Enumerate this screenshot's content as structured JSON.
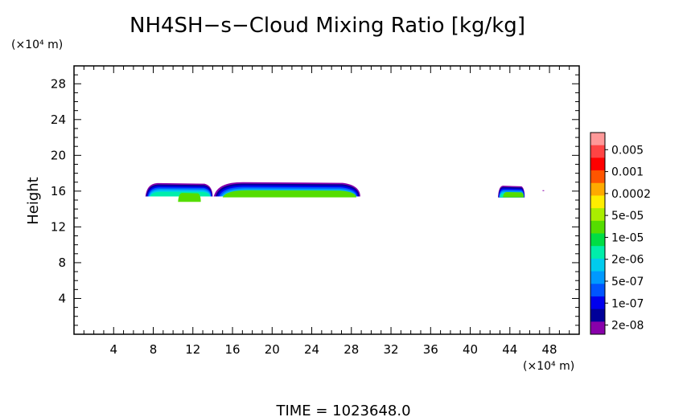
{
  "chart_data": {
    "type": "heatmap",
    "title": "NH4SH−s−Cloud Mixing Ratio [kg/kg]",
    "ylabel": "Height",
    "yunit": "(×10⁴ m)",
    "xunit": "(×10⁴ m)",
    "x_ticks": [
      4,
      8,
      12,
      16,
      20,
      24,
      28,
      32,
      36,
      40,
      44,
      48
    ],
    "y_ticks": [
      4,
      8,
      12,
      16,
      20,
      24,
      28
    ],
    "xlim": [
      0,
      51
    ],
    "ylim": [
      0,
      30
    ],
    "footer": "TIME  =  1023648.0",
    "colorbar": {
      "labels": [
        "0.005",
        "0.001",
        "0.0002",
        "5e-05",
        "1e-05",
        "2e-06",
        "5e-07",
        "1e-07",
        "2e-08"
      ],
      "colors": [
        "#ff9999",
        "#ff4444",
        "#ff0000",
        "#ff5500",
        "#ffaa00",
        "#ffee00",
        "#aaee00",
        "#55dd00",
        "#00dd44",
        "#00eeaa",
        "#00ccee",
        "#0099ff",
        "#0055ff",
        "#0000ee",
        "#000099",
        "#8800aa"
      ]
    },
    "cloud_layers": [
      {
        "level": "2e-08",
        "color": "#8800aa",
        "top": 16.9,
        "bottom": 15.5
      },
      {
        "level": "1e-07",
        "color": "#000099",
        "top": 16.7,
        "bottom": 15.5
      },
      {
        "level": "5e-07",
        "color": "#0000ee",
        "top": 16.5,
        "bottom": 15.5
      },
      {
        "level": "2e-06",
        "color": "#0055ff",
        "top": 16.3,
        "bottom": 15.5
      },
      {
        "level": "5e-06",
        "color": "#0099ff",
        "top": 16.1,
        "bottom": 15.5
      },
      {
        "level": "1e-05",
        "color": "#00ccee",
        "top": 15.9,
        "bottom": 15.5
      },
      {
        "level": "2e-05",
        "color": "#00eeaa",
        "top": 15.7,
        "bottom": 15.5
      },
      {
        "level": "5e-05",
        "color": "#55dd00",
        "top": 15.4,
        "bottom": 15.1
      }
    ],
    "clouds": [
      {
        "x0": 7.2,
        "x1": 14.0,
        "top": 16.9,
        "bottom": 15.4,
        "core_x0": 10.5,
        "core_x1": 12.8,
        "core_top": 15.8,
        "core_bottom": 14.8
      },
      {
        "x0": 14.1,
        "x1": 28.9,
        "top": 17.0,
        "bottom": 15.4,
        "core_x0": 15.0,
        "core_x1": 28.5,
        "core_top": 16.1,
        "core_bottom": 15.3
      },
      {
        "x0": 42.8,
        "x1": 45.5,
        "top": 16.6,
        "bottom": 15.3,
        "core_x0": 43.3,
        "core_x1": 45.4,
        "core_top": 15.9,
        "core_bottom": 15.3
      }
    ]
  }
}
